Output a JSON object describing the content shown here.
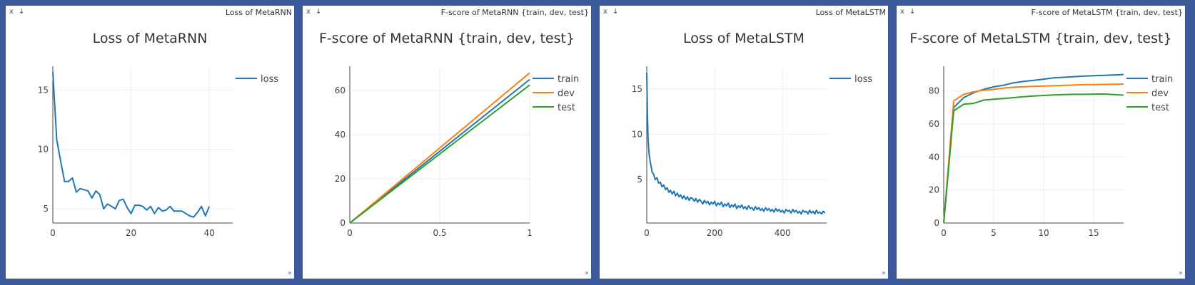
{
  "panes": [
    {
      "pane_title": "Loss of MetaRNN",
      "close_label": "x",
      "download_label": "↓",
      "resize_label": "»",
      "chart_data": {
        "type": "line",
        "title": "Loss of MetaRNN",
        "xlim": [
          0,
          46
        ],
        "ylim": [
          3.8,
          17
        ],
        "xticks": [
          0,
          20,
          40
        ],
        "yticks": [
          5,
          10,
          15
        ],
        "grid": true,
        "legend_position": "top-right",
        "series": [
          {
            "name": "loss",
            "color": "#1f77b4",
            "x": [
              0,
              1,
              2,
              3,
              4,
              5,
              6,
              7,
              8,
              9,
              10,
              11,
              12,
              13,
              14,
              15,
              16,
              17,
              18,
              19,
              20,
              21,
              22,
              23,
              24,
              25,
              26,
              27,
              28,
              29,
              30,
              31,
              32,
              33,
              34,
              35,
              36,
              37,
              38,
              39,
              40
            ],
            "y": [
              16.5,
              10.8,
              9.0,
              7.3,
              7.3,
              7.6,
              6.4,
              6.7,
              6.6,
              6.5,
              5.9,
              6.5,
              6.2,
              5.0,
              5.4,
              5.2,
              5.0,
              5.7,
              5.8,
              5.1,
              4.6,
              5.3,
              5.3,
              5.2,
              4.9,
              5.2,
              4.6,
              5.1,
              4.8,
              4.9,
              5.2,
              4.8,
              4.8,
              4.8,
              4.6,
              4.4,
              4.3,
              4.7,
              5.2,
              4.4,
              5.2
            ]
          }
        ]
      }
    },
    {
      "pane_title": "F-score of MetaRNN {train, dev, test}",
      "close_label": "x",
      "download_label": "↓",
      "resize_label": "»",
      "chart_data": {
        "type": "line",
        "title": "F-score of MetaRNN {train, dev, test}",
        "xlim": [
          0,
          1
        ],
        "ylim": [
          0,
          71
        ],
        "xticks": [
          0,
          0.5,
          1
        ],
        "yticks": [
          0,
          20,
          40,
          60
        ],
        "grid": true,
        "legend_position": "top-right",
        "series": [
          {
            "name": "train",
            "color": "#1f77b4",
            "x": [
              0,
              1
            ],
            "y": [
              0,
              65
            ]
          },
          {
            "name": "dev",
            "color": "#ff7f0e",
            "x": [
              0,
              1
            ],
            "y": [
              0,
              68
            ]
          },
          {
            "name": "test",
            "color": "#2ca02c",
            "x": [
              0,
              1
            ],
            "y": [
              0,
              62.5
            ]
          }
        ]
      }
    },
    {
      "pane_title": "Loss of MetaLSTM",
      "close_label": "x",
      "download_label": "↓",
      "resize_label": "»",
      "chart_data": {
        "type": "line",
        "title": "Loss of MetaLSTM",
        "xlim": [
          0,
          530
        ],
        "ylim": [
          0.2,
          17.5
        ],
        "xticks": [
          0,
          200,
          400
        ],
        "yticks": [
          5,
          10,
          15
        ],
        "grid": true,
        "legend_position": "top-right",
        "series": [
          {
            "name": "loss",
            "color": "#1f77b4",
            "x": [
              0,
              2,
              4,
              6,
              8,
              10,
              13,
              16,
              20,
              25,
              30,
              35,
              40,
              45,
              50,
              55,
              60,
              65,
              70,
              75,
              80,
              85,
              90,
              95,
              100,
              105,
              110,
              115,
              120,
              125,
              130,
              135,
              140,
              145,
              150,
              155,
              160,
              165,
              170,
              175,
              180,
              185,
              190,
              195,
              200,
              205,
              210,
              215,
              220,
              225,
              230,
              235,
              240,
              245,
              250,
              255,
              260,
              265,
              270,
              275,
              280,
              285,
              290,
              295,
              300,
              305,
              310,
              315,
              320,
              325,
              330,
              335,
              340,
              345,
              350,
              355,
              360,
              365,
              370,
              375,
              380,
              385,
              390,
              395,
              400,
              405,
              410,
              415,
              420,
              425,
              430,
              435,
              440,
              445,
              450,
              455,
              460,
              465,
              470,
              475,
              480,
              485,
              490,
              495,
              500,
              505,
              510,
              515,
              520,
              525
            ],
            "y": [
              16.8,
              12.0,
              9.5,
              8.2,
              7.5,
              7.0,
              6.4,
              5.8,
              5.6,
              5.0,
              5.2,
              4.6,
              4.7,
              4.2,
              4.4,
              3.9,
              4.1,
              3.6,
              3.8,
              3.4,
              3.7,
              3.2,
              3.5,
              3.1,
              3.3,
              2.9,
              3.2,
              2.8,
              3.1,
              2.7,
              3.0,
              2.9,
              2.6,
              2.9,
              2.5,
              2.8,
              2.6,
              2.3,
              2.7,
              2.4,
              2.6,
              2.2,
              2.5,
              2.3,
              2.6,
              2.1,
              2.4,
              2.2,
              2.5,
              2.0,
              2.3,
              2.1,
              2.4,
              1.9,
              2.2,
              2.0,
              2.3,
              1.8,
              2.1,
              1.9,
              2.2,
              1.8,
              2.0,
              1.7,
              2.1,
              1.8,
              1.9,
              1.6,
              2.0,
              1.7,
              1.9,
              1.6,
              1.8,
              1.5,
              1.9,
              1.6,
              1.8,
              1.5,
              1.7,
              1.4,
              1.8,
              1.5,
              1.7,
              1.4,
              1.6,
              1.3,
              1.7,
              1.5,
              1.6,
              1.3,
              1.7,
              1.4,
              1.6,
              1.3,
              1.5,
              1.2,
              1.6,
              1.4,
              1.5,
              1.2,
              1.6,
              1.3,
              1.5,
              1.2,
              1.6,
              1.3,
              1.4,
              1.2,
              1.5,
              1.3
            ]
          }
        ]
      }
    },
    {
      "pane_title": "F-score of MetaLSTM {train, dev, test}",
      "close_label": "x",
      "download_label": "↓",
      "resize_label": "»",
      "chart_data": {
        "type": "line",
        "title": "F-score of MetaLSTM {train, dev, test}",
        "xlim": [
          0,
          18
        ],
        "ylim": [
          0,
          95
        ],
        "xticks": [
          0,
          5,
          10,
          15
        ],
        "yticks": [
          0,
          20,
          40,
          60,
          80
        ],
        "grid": true,
        "legend_position": "top-right",
        "series": [
          {
            "name": "train",
            "color": "#1f77b4",
            "x": [
              0,
              1,
              2,
              3,
              4,
              5,
              6,
              7,
              8,
              9,
              10,
              11,
              12,
              13,
              14,
              15,
              16,
              17,
              18
            ],
            "y": [
              0,
              70,
              76,
              79,
              81,
              82.5,
              83.5,
              85,
              85.8,
              86.5,
              87.2,
              88,
              88.3,
              88.7,
              89,
              89.3,
              89.5,
              89.7,
              90
            ]
          },
          {
            "name": "dev",
            "color": "#ff7f0e",
            "x": [
              0,
              1,
              2,
              3,
              4,
              5,
              6,
              7,
              8,
              9,
              10,
              11,
              12,
              13,
              14,
              15,
              16,
              17,
              18
            ],
            "y": [
              0,
              74,
              78,
              79.5,
              80.5,
              81,
              81.8,
              82.3,
              82.6,
              82.8,
              83,
              83.2,
              83.4,
              83.6,
              83.8,
              83.9,
              84,
              84.1,
              84.2
            ]
          },
          {
            "name": "test",
            "color": "#2ca02c",
            "x": [
              0,
              1,
              2,
              3,
              4,
              5,
              6,
              7,
              8,
              9,
              10,
              11,
              12,
              13,
              14,
              15,
              16,
              17,
              18
            ],
            "y": [
              0,
              68,
              72,
              72.5,
              74.5,
              75,
              75.5,
              76,
              76.5,
              77,
              77.3,
              77.6,
              77.8,
              78,
              78,
              78.1,
              78.2,
              77.8,
              77.5
            ]
          }
        ]
      }
    }
  ]
}
